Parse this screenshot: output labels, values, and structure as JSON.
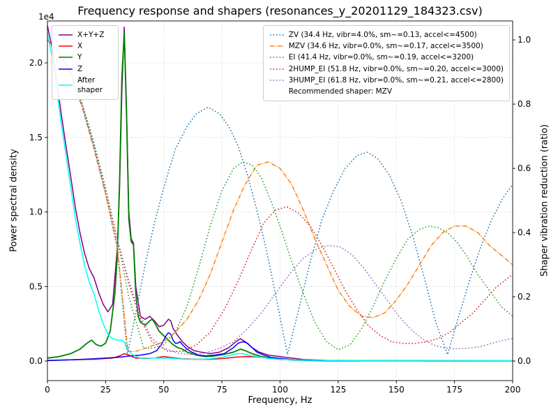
{
  "figure": {
    "title": "Frequency response and shapers (resonances_y_20201129_184323.csv)",
    "offset_text": "1e4",
    "xlabel": "Frequency, Hz",
    "ylabel_left": "Power spectral density",
    "ylabel_right": "Shaper vibration reduction (ratio)"
  },
  "chart_data": {
    "type": "line",
    "title": "Frequency response and shapers (resonances_y_20201129_184323.csv)",
    "xlabel": "Frequency, Hz",
    "ylabel_left": "Power spectral density",
    "ylabel_right": "Shaper vibration reduction (ratio)",
    "xlim": [
      0,
      200
    ],
    "x_ticks": [
      0,
      25,
      50,
      75,
      100,
      125,
      150,
      175,
      200
    ],
    "x_tick_labels": [
      "0",
      "25",
      "50",
      "75",
      "100",
      "125",
      "150",
      "175",
      "200"
    ],
    "left_axis": {
      "lim": [
        -0.131,
        2.281
      ],
      "ticks": [
        0,
        0.5,
        1.0,
        1.5,
        2.0
      ],
      "tick_labels": [
        "0.0",
        "0.5",
        "1.0",
        "1.5",
        "2.0"
      ],
      "multiplier": "1e4"
    },
    "right_axis": {
      "lim": [
        -0.061,
        1.059
      ],
      "ticks": [
        0,
        0.2,
        0.4,
        0.6,
        0.8,
        1.0
      ],
      "tick_labels": [
        "0.0",
        "0.2",
        "0.4",
        "0.6",
        "0.8",
        "1.0"
      ]
    },
    "grid": true,
    "legend_left": {
      "item_ids": [
        "xyz",
        "x",
        "y",
        "z",
        "after"
      ]
    },
    "legend_right": {
      "item_ids": [
        "zv",
        "mzv",
        "ei",
        "ei2",
        "ei3"
      ],
      "note": "Recommended shaper: MZV"
    },
    "series": [
      {
        "id": "xyz",
        "label": "X+Y+Z",
        "color": "#800080",
        "style": "solid",
        "axis": "left",
        "width": 1.5,
        "x": [
          0,
          2,
          4,
          6,
          8,
          10,
          12,
          14,
          16,
          18,
          20,
          22,
          24,
          26,
          28,
          30,
          31,
          32,
          33,
          34,
          35,
          36,
          37,
          38,
          40,
          42,
          44,
          46,
          48,
          50,
          51,
          52,
          53,
          54,
          56,
          58,
          60,
          63,
          66,
          70,
          74,
          78,
          81,
          83,
          85,
          88,
          91,
          95,
          100,
          105,
          110,
          120,
          140,
          170,
          200
        ],
        "y": [
          2.25,
          2.1,
          1.88,
          1.65,
          1.44,
          1.24,
          1.03,
          0.86,
          0.72,
          0.62,
          0.56,
          0.46,
          0.38,
          0.33,
          0.38,
          0.75,
          1.15,
          1.8,
          2.24,
          1.7,
          1.0,
          0.82,
          0.79,
          0.5,
          0.3,
          0.28,
          0.3,
          0.27,
          0.23,
          0.24,
          0.26,
          0.28,
          0.27,
          0.22,
          0.17,
          0.13,
          0.1,
          0.07,
          0.06,
          0.05,
          0.06,
          0.09,
          0.13,
          0.15,
          0.13,
          0.09,
          0.06,
          0.04,
          0.03,
          0.02,
          0.01,
          0.005,
          0.003,
          0.002,
          0.001
        ]
      },
      {
        "id": "x",
        "label": "X",
        "color": "#ff0000",
        "style": "solid",
        "axis": "left",
        "width": 1.5,
        "x": [
          0,
          10,
          20,
          28,
          31,
          33,
          35,
          38,
          42,
          46,
          50,
          54,
          58,
          64,
          70,
          76,
          82,
          86,
          90,
          95,
          100,
          110,
          120,
          150,
          200
        ],
        "y": [
          0.005,
          0.008,
          0.012,
          0.02,
          0.035,
          0.05,
          0.04,
          0.02,
          0.018,
          0.02,
          0.03,
          0.022,
          0.015,
          0.012,
          0.012,
          0.018,
          0.028,
          0.03,
          0.028,
          0.02,
          0.012,
          0.006,
          0.003,
          0.002,
          0.001
        ]
      },
      {
        "id": "y",
        "label": "Y",
        "color": "#008000",
        "style": "solid",
        "axis": "left",
        "width": 1.8,
        "x": [
          0,
          5,
          10,
          14,
          17,
          19,
          21,
          23,
          25,
          27,
          29,
          30,
          31,
          32,
          33,
          34,
          35,
          36,
          37,
          38,
          39,
          40,
          42,
          44,
          45,
          46,
          48,
          50,
          52,
          54,
          56,
          58,
          60,
          64,
          68,
          72,
          76,
          80,
          83,
          85,
          88,
          92,
          96,
          100,
          105,
          110,
          120,
          140,
          170,
          200
        ],
        "y": [
          0.02,
          0.03,
          0.05,
          0.08,
          0.12,
          0.14,
          0.11,
          0.1,
          0.12,
          0.2,
          0.45,
          0.7,
          1.2,
          1.9,
          2.2,
          1.65,
          0.95,
          0.8,
          0.78,
          0.45,
          0.3,
          0.26,
          0.24,
          0.27,
          0.28,
          0.26,
          0.2,
          0.17,
          0.14,
          0.11,
          0.09,
          0.08,
          0.06,
          0.04,
          0.03,
          0.035,
          0.045,
          0.06,
          0.08,
          0.07,
          0.05,
          0.03,
          0.02,
          0.015,
          0.008,
          0.005,
          0.003,
          0.002,
          0.001,
          0.001
        ]
      },
      {
        "id": "z",
        "label": "Z",
        "color": "#0000ff",
        "style": "solid",
        "axis": "left",
        "width": 1.5,
        "x": [
          0,
          10,
          20,
          30,
          36,
          40,
          44,
          47,
          49,
          51,
          52,
          53,
          54,
          55,
          56,
          57,
          58,
          60,
          62,
          65,
          68,
          72,
          76,
          80,
          82,
          84,
          86,
          88,
          90,
          93,
          96,
          100,
          104,
          108,
          112,
          120,
          140,
          170,
          200
        ],
        "y": [
          0.003,
          0.008,
          0.015,
          0.025,
          0.035,
          0.04,
          0.05,
          0.07,
          0.11,
          0.17,
          0.19,
          0.18,
          0.14,
          0.12,
          0.12,
          0.13,
          0.11,
          0.08,
          0.06,
          0.04,
          0.035,
          0.04,
          0.05,
          0.09,
          0.12,
          0.13,
          0.12,
          0.09,
          0.06,
          0.04,
          0.025,
          0.018,
          0.012,
          0.007,
          0.004,
          0.002,
          0.001,
          0.001,
          0.001
        ]
      },
      {
        "id": "after",
        "label": "After shaper",
        "color": "#00ffff",
        "style": "solid",
        "axis": "left",
        "width": 1.5,
        "x": [
          0,
          2,
          4,
          6,
          8,
          10,
          12,
          14,
          16,
          18,
          20,
          22,
          24,
          26,
          28,
          30,
          32,
          33,
          34,
          36,
          38,
          40,
          44,
          48,
          52,
          56,
          60,
          65,
          70,
          75,
          79,
          82,
          84,
          86,
          90,
          95,
          100,
          110,
          120,
          150,
          200
        ],
        "y": [
          2.2,
          2.04,
          1.82,
          1.59,
          1.38,
          1.17,
          0.96,
          0.79,
          0.64,
          0.53,
          0.45,
          0.34,
          0.25,
          0.18,
          0.15,
          0.14,
          0.14,
          0.13,
          0.09,
          0.05,
          0.03,
          0.02,
          0.02,
          0.02,
          0.02,
          0.015,
          0.012,
          0.012,
          0.015,
          0.025,
          0.04,
          0.05,
          0.05,
          0.04,
          0.03,
          0.018,
          0.012,
          0.006,
          0.004,
          0.002,
          0.001
        ]
      },
      {
        "id": "zv",
        "label": "ZV (34.4 Hz, vibr=4.0%, sm~=0.13, accel<=4500)",
        "color": "#1f77b4",
        "style": "dotted",
        "axis": "right",
        "width": 1.5,
        "x": [
          0,
          5,
          10,
          15,
          20,
          25,
          30,
          34.4,
          38,
          42,
          46,
          50,
          55,
          60,
          64,
          69,
          74,
          78,
          82,
          86,
          90,
          94,
          98,
          103.2,
          108,
          113,
          118,
          123,
          128,
          133,
          137.6,
          142,
          147,
          152,
          157,
          162,
          167,
          172,
          176,
          181,
          186,
          191,
          196,
          200
        ],
        "y": [
          1.0,
          0.97,
          0.9,
          0.8,
          0.67,
          0.52,
          0.35,
          0.02,
          0.15,
          0.3,
          0.43,
          0.54,
          0.66,
          0.73,
          0.77,
          0.79,
          0.77,
          0.73,
          0.67,
          0.58,
          0.47,
          0.35,
          0.21,
          0.02,
          0.16,
          0.31,
          0.44,
          0.53,
          0.6,
          0.64,
          0.65,
          0.63,
          0.58,
          0.5,
          0.39,
          0.26,
          0.12,
          0.02,
          0.12,
          0.24,
          0.35,
          0.44,
          0.51,
          0.55
        ]
      },
      {
        "id": "mzv",
        "label": "MZV (34.6 Hz, vibr=0.0%, sm~=0.17, accel<=3500)",
        "color": "#ff7f0e",
        "style": "dashdot",
        "axis": "right",
        "width": 1.5,
        "x": [
          0,
          5,
          10,
          15,
          20,
          25,
          30,
          34.6,
          38,
          42,
          46,
          50,
          55,
          60,
          65,
          70,
          75,
          80,
          85,
          90,
          95,
          100,
          105,
          110,
          115,
          120,
          125,
          130,
          135,
          140,
          145,
          150,
          155,
          160,
          165,
          170,
          175,
          180,
          185,
          190,
          195,
          200
        ],
        "y": [
          1.0,
          0.96,
          0.89,
          0.79,
          0.66,
          0.52,
          0.36,
          0.03,
          0.03,
          0.04,
          0.05,
          0.06,
          0.09,
          0.13,
          0.19,
          0.27,
          0.37,
          0.47,
          0.55,
          0.61,
          0.62,
          0.6,
          0.55,
          0.47,
          0.38,
          0.3,
          0.22,
          0.17,
          0.14,
          0.135,
          0.15,
          0.19,
          0.24,
          0.3,
          0.36,
          0.4,
          0.42,
          0.42,
          0.4,
          0.36,
          0.33,
          0.3
        ]
      },
      {
        "id": "ei",
        "label": "EI (41.4 Hz, vibr=0.0%, sm~=0.19, accel<=3200)",
        "color": "#2ca02c",
        "style": "dotted",
        "axis": "right",
        "width": 1.5,
        "x": [
          0,
          5,
          10,
          15,
          20,
          25,
          30,
          35,
          41.4,
          45,
          50,
          55,
          60,
          65,
          70,
          75,
          80,
          84,
          88,
          92,
          96,
          100,
          105,
          110,
          115,
          120,
          125,
          130,
          135,
          140,
          145,
          150,
          155,
          160,
          164,
          168,
          172,
          176,
          180,
          185,
          190,
          195,
          200
        ],
        "y": [
          1.0,
          0.96,
          0.9,
          0.8,
          0.68,
          0.54,
          0.38,
          0.2,
          0.04,
          0.04,
          0.05,
          0.09,
          0.17,
          0.29,
          0.42,
          0.53,
          0.6,
          0.62,
          0.61,
          0.57,
          0.5,
          0.42,
          0.31,
          0.21,
          0.12,
          0.06,
          0.035,
          0.05,
          0.1,
          0.17,
          0.25,
          0.32,
          0.38,
          0.41,
          0.42,
          0.415,
          0.4,
          0.37,
          0.33,
          0.27,
          0.22,
          0.17,
          0.14
        ]
      },
      {
        "id": "ei2",
        "label": "2HUMP_EI (51.8 Hz, vibr=0.0%, sm~=0.20, accel<=3000)",
        "color": "#d62728",
        "style": "dotted",
        "axis": "right",
        "width": 1.5,
        "x": [
          0,
          5,
          10,
          15,
          20,
          25,
          30,
          35,
          40,
          45,
          51.8,
          58,
          64,
          70,
          76,
          82,
          88,
          93,
          98,
          103,
          108,
          113,
          118,
          123,
          128,
          133,
          138,
          143,
          148,
          153,
          158,
          163,
          168,
          173,
          178,
          183,
          188,
          193,
          200
        ],
        "y": [
          1.0,
          0.96,
          0.89,
          0.79,
          0.67,
          0.53,
          0.38,
          0.24,
          0.13,
          0.06,
          0.03,
          0.03,
          0.05,
          0.09,
          0.16,
          0.25,
          0.35,
          0.43,
          0.47,
          0.48,
          0.46,
          0.42,
          0.36,
          0.29,
          0.22,
          0.16,
          0.11,
          0.08,
          0.06,
          0.055,
          0.055,
          0.06,
          0.07,
          0.09,
          0.12,
          0.15,
          0.19,
          0.23,
          0.27
        ]
      },
      {
        "id": "ei3",
        "label": "3HUMP_EI (61.8 Hz, vibr=0.0%, sm~=0.21, accel<=2800)",
        "color": "#9467bd",
        "style": "dotted",
        "axis": "right",
        "width": 1.5,
        "x": [
          0,
          5,
          10,
          15,
          20,
          25,
          30,
          35,
          40,
          45,
          50,
          56,
          61.8,
          68,
          74,
          80,
          86,
          92,
          98,
          104,
          110,
          116,
          121,
          126,
          131,
          136,
          141,
          146,
          151,
          156,
          161,
          166,
          171,
          176,
          181,
          186,
          191,
          196,
          200
        ],
        "y": [
          1.0,
          0.96,
          0.89,
          0.79,
          0.67,
          0.53,
          0.38,
          0.25,
          0.14,
          0.07,
          0.04,
          0.025,
          0.02,
          0.025,
          0.04,
          0.06,
          0.1,
          0.15,
          0.21,
          0.27,
          0.32,
          0.35,
          0.36,
          0.355,
          0.33,
          0.29,
          0.24,
          0.19,
          0.14,
          0.1,
          0.07,
          0.05,
          0.04,
          0.038,
          0.04,
          0.045,
          0.055,
          0.065,
          0.07
        ]
      }
    ]
  }
}
